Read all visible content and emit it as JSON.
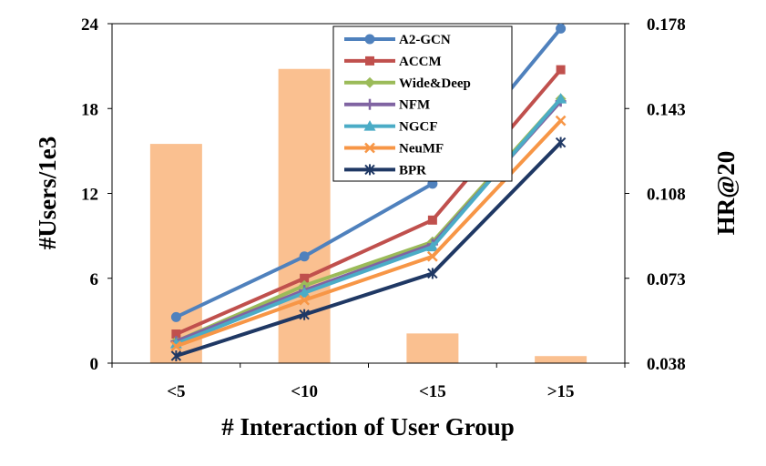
{
  "chart_data": {
    "type": "bar+line",
    "categories": [
      "<5",
      "<10",
      "<15",
      ">15"
    ],
    "xlabel": "# Interaction of User Group",
    "ylabel_left": "#Users/1e3",
    "ylabel_right": "HR@20",
    "left_axis": {
      "range": [
        0,
        24
      ],
      "ticks": [
        "0",
        "6",
        "12",
        "18",
        "24"
      ]
    },
    "right_axis": {
      "range": [
        0.038,
        0.178
      ],
      "ticks": [
        "0.038",
        "0.073",
        "0.108",
        "0.143",
        "0.178"
      ]
    },
    "bars": {
      "name": "#Users/1e3",
      "color": "#FAC090",
      "values": [
        15.5,
        20.8,
        2.1,
        0.5
      ]
    },
    "series": [
      {
        "name": "A2-GCN",
        "color": "#4F81BD",
        "marker": "circle",
        "values": [
          0.057,
          0.082,
          0.112,
          0.176
        ]
      },
      {
        "name": "ACCM",
        "color": "#C0504D",
        "marker": "square",
        "values": [
          0.05,
          0.073,
          0.097,
          0.159
        ]
      },
      {
        "name": "Wide&Deep",
        "color": "#9BBB59",
        "marker": "diamond",
        "values": [
          0.047,
          0.07,
          0.088,
          0.147
        ]
      },
      {
        "name": "NFM",
        "color": "#8064A2",
        "marker": "plus",
        "values": [
          0.047,
          0.068,
          0.087,
          0.146
        ]
      },
      {
        "name": "NGCF",
        "color": "#4BACC6",
        "marker": "triangle",
        "values": [
          0.046,
          0.067,
          0.086,
          0.147
        ]
      },
      {
        "name": "NeuMF",
        "color": "#F79646",
        "marker": "x",
        "values": [
          0.045,
          0.064,
          0.082,
          0.138
        ]
      },
      {
        "name": "BPR",
        "color": "#1F3864",
        "marker": "star",
        "values": [
          0.041,
          0.058,
          0.075,
          0.129
        ]
      }
    ],
    "legend_position": "top-center",
    "grid": false
  }
}
